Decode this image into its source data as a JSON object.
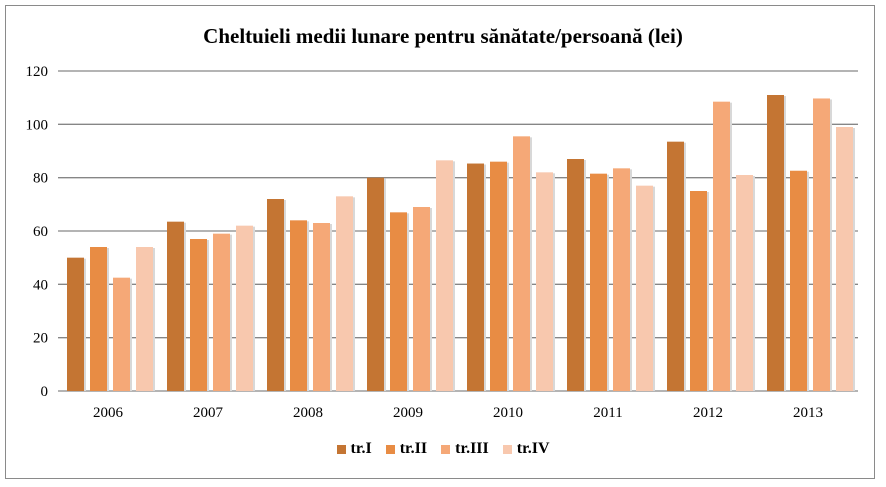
{
  "chart_data": {
    "type": "bar",
    "title": "Cheltuieli medii lunare pentru sănătate/persoană  (lei)",
    "categories": [
      "2006",
      "2007",
      "2008",
      "2009",
      "2010",
      "2011",
      "2012",
      "2013"
    ],
    "series": [
      {
        "name": "tr.I",
        "color": "#c47533",
        "values": [
          50,
          63.5,
          72,
          80,
          85.3,
          87,
          93.5,
          111
        ]
      },
      {
        "name": "tr.II",
        "color": "#e88c44",
        "values": [
          54,
          57,
          64,
          67,
          86,
          81.5,
          75,
          82.6
        ]
      },
      {
        "name": "tr.III",
        "color": "#f5a877",
        "values": [
          42.5,
          59,
          63,
          69,
          95.5,
          83.5,
          108.5,
          109.7
        ]
      },
      {
        "name": "tr.IV",
        "color": "#f8c8ae",
        "values": [
          54,
          62,
          73,
          86.5,
          82,
          77,
          81,
          99
        ]
      }
    ],
    "yticks": [
      "0",
      "20",
      "40",
      "60",
      "80",
      "100",
      "120"
    ],
    "ylim": [
      0,
      120
    ],
    "grid": true,
    "legend": "bottom"
  }
}
